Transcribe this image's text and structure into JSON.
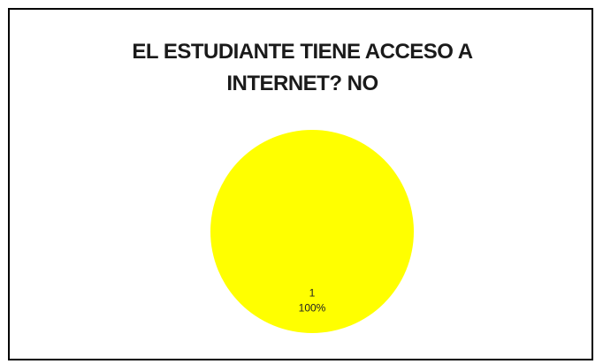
{
  "chart_data": {
    "type": "pie",
    "title_lines": [
      "EL ESTUDIANTE TIENE ACCESO A",
      "INTERNET? NO"
    ],
    "categories": [
      "1"
    ],
    "values": [
      1
    ],
    "percent_labels": [
      "100%"
    ],
    "colors": [
      "#ffff00"
    ],
    "legend": "none"
  }
}
